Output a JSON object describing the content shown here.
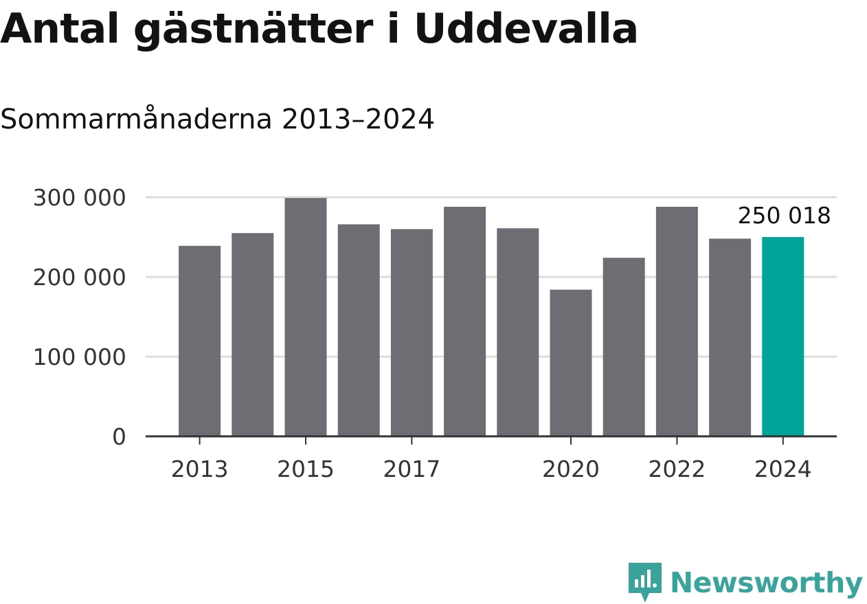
{
  "header": {
    "title": "Antal gästnätter i Uddevalla",
    "subtitle": "Sommarmånaderna 2013–2024"
  },
  "brand": {
    "name": "Newsworthy",
    "color": "#3aa39c"
  },
  "chart_data": {
    "type": "bar",
    "title": "Antal gästnätter i Uddevalla",
    "subtitle": "Sommarmånaderna 2013–2024",
    "categories": [
      "2013",
      "2014",
      "2015",
      "2016",
      "2017",
      "2018",
      "2019",
      "2020",
      "2021",
      "2022",
      "2023",
      "2024"
    ],
    "series": [
      {
        "values": [
          239000,
          255000,
          299000,
          266000,
          260000,
          288000,
          261000,
          184000,
          224000,
          288000,
          248000,
          250018
        ]
      }
    ],
    "xtick_labels": [
      "2013",
      "2015",
      "2017",
      "2020",
      "2022",
      "2024"
    ],
    "ytick_labels": [
      "0",
      "100 000",
      "200 000",
      "300 000"
    ],
    "yticks": [
      0,
      100000,
      200000,
      300000
    ],
    "ylim": [
      0,
      300000
    ],
    "xlabel": "",
    "ylabel": "",
    "grid": true,
    "highlight_index": 11,
    "highlight_label": "250 018",
    "colors": {
      "bar": "#6e6d73",
      "highlight": "#00a59a",
      "grid": "#dddddd",
      "axis": "#333333"
    }
  }
}
